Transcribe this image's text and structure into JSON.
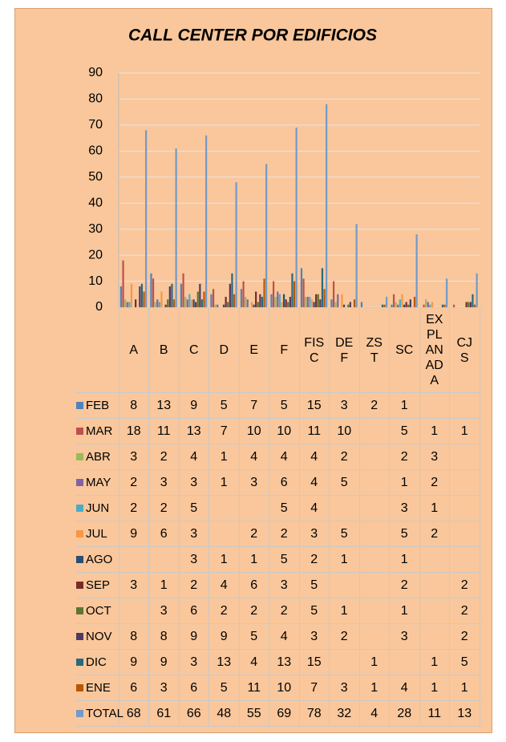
{
  "chart_data": {
    "type": "bar",
    "title": "CALL CENTER POR EDIFICIOS",
    "categories": [
      "A",
      "B",
      "C",
      "D",
      "E",
      "F",
      "FISC",
      "DEF",
      "ZST",
      "SC",
      "EXPLANADA",
      "CJS"
    ],
    "ylim": [
      0,
      90
    ],
    "yticks": [
      0,
      10,
      20,
      30,
      40,
      50,
      60,
      70,
      80,
      90
    ],
    "grid": true,
    "series": [
      {
        "name": "FEB",
        "color": "#4f81bd",
        "values": [
          8,
          13,
          9,
          5,
          7,
          5,
          15,
          3,
          2,
          1,
          null,
          null
        ]
      },
      {
        "name": "MAR",
        "color": "#c0504d",
        "values": [
          18,
          11,
          13,
          7,
          10,
          10,
          11,
          10,
          null,
          5,
          1,
          1
        ]
      },
      {
        "name": "ABR",
        "color": "#9bbb59",
        "values": [
          3,
          2,
          4,
          1,
          4,
          4,
          4,
          2,
          null,
          2,
          3,
          null
        ]
      },
      {
        "name": "MAY",
        "color": "#8064a2",
        "values": [
          2,
          3,
          3,
          1,
          3,
          6,
          4,
          5,
          null,
          1,
          2,
          null
        ]
      },
      {
        "name": "JUN",
        "color": "#4bacc6",
        "values": [
          2,
          2,
          5,
          null,
          null,
          5,
          4,
          null,
          null,
          3,
          1,
          null
        ]
      },
      {
        "name": "JUL",
        "color": "#f79646",
        "values": [
          9,
          6,
          3,
          null,
          2,
          2,
          3,
          5,
          null,
          5,
          2,
          null
        ]
      },
      {
        "name": "AGO",
        "color": "#2c4d75",
        "values": [
          null,
          null,
          3,
          1,
          1,
          5,
          2,
          1,
          null,
          1,
          null,
          null
        ]
      },
      {
        "name": "SEP",
        "color": "#772c2a",
        "values": [
          3,
          1,
          2,
          4,
          6,
          3,
          5,
          null,
          null,
          2,
          null,
          2
        ]
      },
      {
        "name": "OCT",
        "color": "#5f7530",
        "values": [
          null,
          3,
          6,
          2,
          2,
          2,
          5,
          1,
          null,
          1,
          null,
          2
        ]
      },
      {
        "name": "NOV",
        "color": "#4d3b62",
        "values": [
          8,
          8,
          9,
          9,
          5,
          4,
          3,
          2,
          null,
          3,
          null,
          2
        ]
      },
      {
        "name": "DIC",
        "color": "#276a7c",
        "values": [
          9,
          9,
          3,
          13,
          4,
          13,
          15,
          null,
          1,
          null,
          1,
          5
        ]
      },
      {
        "name": "ENE",
        "color": "#b65708",
        "values": [
          6,
          3,
          6,
          5,
          11,
          10,
          7,
          3,
          1,
          4,
          1,
          1
        ]
      },
      {
        "name": "TOTAL",
        "color": "#729aca",
        "values": [
          68,
          61,
          66,
          48,
          55,
          69,
          78,
          32,
          4,
          28,
          11,
          13
        ]
      }
    ]
  }
}
